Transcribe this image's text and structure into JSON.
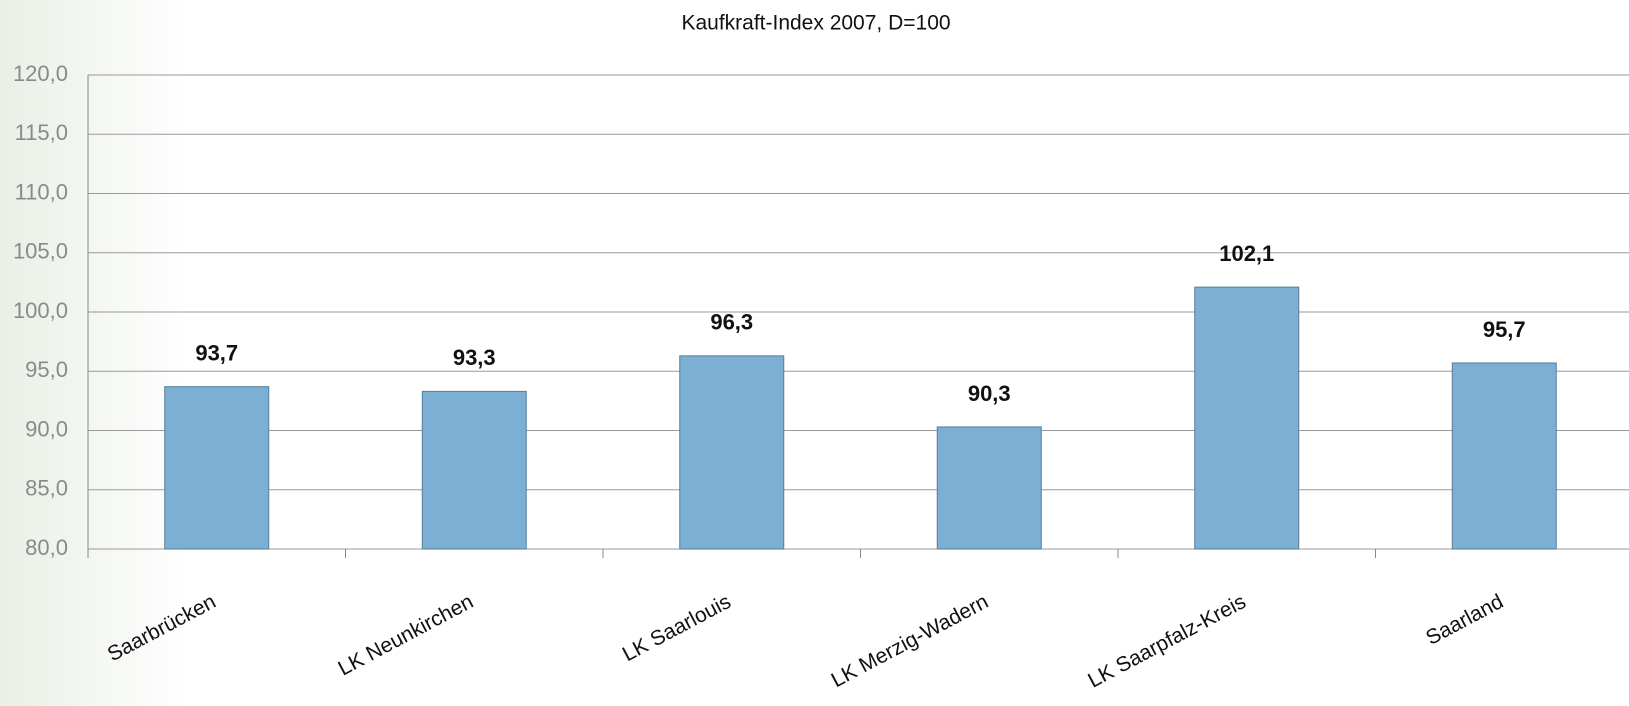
{
  "chart_data": {
    "type": "bar",
    "title": "Kaufkraft-Index 2007, D=100",
    "categories": [
      "Saarbrücken",
      "LK Neunkirchen",
      "LK Saarlouis",
      "LK Merzig-Wadern",
      "LK Saarpfalz-Kreis",
      "Saarland"
    ],
    "values": [
      93.7,
      93.3,
      96.3,
      90.3,
      102.1,
      95.7
    ],
    "value_labels": [
      "93,7",
      "93,3",
      "96,3",
      "90,3",
      "102,1",
      "95,7"
    ],
    "color": "#7bafd4",
    "ylim": [
      80,
      120
    ],
    "yticks": [
      {
        "value": 80,
        "label": "80,0"
      },
      {
        "value": 85,
        "label": "85,0"
      },
      {
        "value": 90,
        "label": "90,0"
      },
      {
        "value": 95,
        "label": "95,0"
      },
      {
        "value": 100,
        "label": "100,0"
      },
      {
        "value": 105,
        "label": "105,0"
      },
      {
        "value": 110,
        "label": "110,0"
      },
      {
        "value": 115,
        "label": "115,0"
      },
      {
        "value": 120,
        "label": "120,0"
      }
    ],
    "grid": true
  }
}
